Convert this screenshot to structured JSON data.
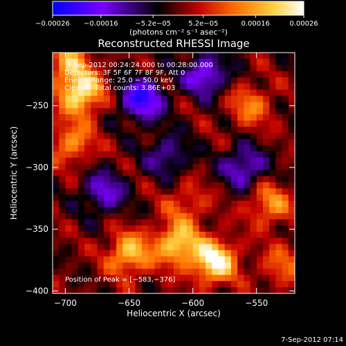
{
  "chart_data": {
    "type": "heatmap",
    "title": "Reconstructed RHESSI Image",
    "xlabel": "Heliocentric X (arcsec)",
    "ylabel": "Heliocentric Y (arcsec)",
    "xlim": [
      -710,
      -520
    ],
    "ylim": [
      -402,
      -207
    ],
    "x_ticks": [
      -700,
      -650,
      -600,
      -550
    ],
    "y_ticks": [
      -250,
      -300,
      -350,
      -400
    ],
    "x_tick_labels": [
      "−700",
      "−650",
      "−600",
      "−550"
    ],
    "y_tick_labels": [
      "−250",
      "−300",
      "−350",
      "−400"
    ],
    "colorbar": {
      "range": [
        -0.00026,
        0.00026
      ],
      "ticks": [
        -0.00026,
        -0.00016,
        -5.2e-05,
        5.2e-05,
        0.00016,
        0.00026
      ],
      "tick_labels": [
        "−0.00026",
        "−0.00016",
        "−5.2e−05",
        "5.2e−05",
        "0.00016",
        "0.00026"
      ],
      "unit_label": "(photons cm⁻² s⁻¹ asec⁻²)",
      "colors": [
        "#0000ff",
        "#7a00ff",
        "#000000",
        "#ff0000",
        "#ff8c00",
        "#ffff60",
        "#ffffff"
      ]
    },
    "annotations": [
      "3‑Sep‑2012 00:24:24.000 to 00:28:00.000",
      "Detectors: 3F 5F 6F 7F 8F 9F, Att 0",
      "Energy Range: 25.0 − 50.0 keV",
      "Clean     Total counts: 3.86E+03"
    ],
    "peak_label": "Position of Peak = [−583,−376]",
    "peak_position": [
      -583,
      -376
    ],
    "footer_date": "7‑Sep‑2012 07:14",
    "bright_sources": [
      {
        "x": -697,
        "y": -215,
        "value": 0.00015
      },
      {
        "x": -688,
        "y": -240,
        "value": 0.00024
      },
      {
        "x": -695,
        "y": -280,
        "value": 0.00014
      },
      {
        "x": -650,
        "y": -370,
        "value": 0.00019
      },
      {
        "x": -612,
        "y": -362,
        "value": 0.00021
      },
      {
        "x": -583,
        "y": -376,
        "value": 0.00026
      },
      {
        "x": -555,
        "y": -250,
        "value": 0.00012
      },
      {
        "x": -540,
        "y": -330,
        "value": 0.00014
      },
      {
        "x": -530,
        "y": -380,
        "value": 0.0001
      },
      {
        "x": -605,
        "y": -330,
        "value": 9e-05
      }
    ],
    "dark_regions": [
      {
        "x": -640,
        "y": -245,
        "value": -0.00022
      },
      {
        "x": -590,
        "y": -225,
        "value": -0.00018
      },
      {
        "x": -560,
        "y": -300,
        "value": -0.00016
      },
      {
        "x": -670,
        "y": -320,
        "value": -0.00015
      },
      {
        "x": -620,
        "y": -290,
        "value": -0.00012
      }
    ]
  }
}
